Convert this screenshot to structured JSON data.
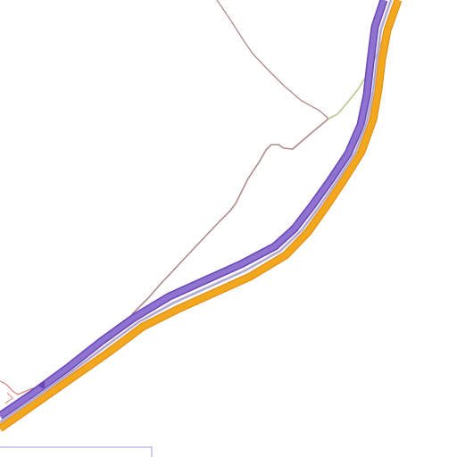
{
  "map": {
    "background": "#ffffff",
    "colors": {
      "motorway_orange": "#f2a71d",
      "motorway_orange_edge": "#e0901a",
      "motorway_purple": "#6a44b8",
      "motorway_purple_light": "#8e73d0",
      "motorway_center": "#c8c0e0",
      "minor_road": "#b08a8a",
      "minor_road_alt": "#c9a98a",
      "link_green": "#b6c98c",
      "boundary": "#8a7fd8",
      "local_red": "#d86a6a"
    },
    "labels": []
  }
}
